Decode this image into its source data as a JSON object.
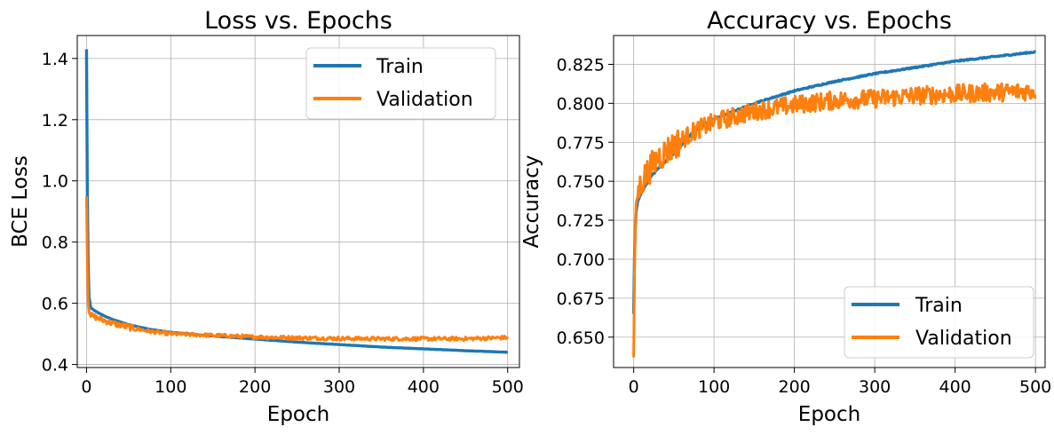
{
  "chart_data": [
    {
      "type": "line",
      "title": "Loss vs. Epochs",
      "xlabel": "Epoch",
      "ylabel": "BCE Loss",
      "xlim": [
        -11,
        514
      ],
      "ylim": [
        0.39,
        1.475
      ],
      "xticks": [
        0,
        100,
        200,
        300,
        400,
        500
      ],
      "xtick_labels": [
        "0",
        "100",
        "200",
        "300",
        "400",
        "500"
      ],
      "yticks": [
        0.4,
        0.6,
        0.8,
        1.0,
        1.2,
        1.4
      ],
      "ytick_labels": [
        "0.4",
        "0.6",
        "0.8",
        "1.0",
        "1.2",
        "1.4"
      ],
      "grid": true,
      "legend_position": "top-right",
      "series": [
        {
          "name": "Train",
          "color": "#1f77b4",
          "x": [
            0,
            1,
            2,
            3,
            5,
            10,
            20,
            30,
            50,
            75,
            100,
            150,
            200,
            250,
            300,
            350,
            400,
            450,
            500
          ],
          "values": [
            1.43,
            0.95,
            0.72,
            0.62,
            0.585,
            0.575,
            0.56,
            0.548,
            0.53,
            0.515,
            0.505,
            0.493,
            0.483,
            0.473,
            0.465,
            0.457,
            0.451,
            0.445,
            0.44
          ]
        },
        {
          "name": "Validation",
          "color": "#ff7f0e",
          "noise": 0.006,
          "x": [
            0,
            1,
            2,
            3,
            5,
            10,
            20,
            30,
            50,
            75,
            100,
            150,
            200,
            250,
            300,
            350,
            400,
            450,
            500
          ],
          "values": [
            0.95,
            0.73,
            0.6,
            0.57,
            0.56,
            0.555,
            0.545,
            0.535,
            0.522,
            0.508,
            0.5,
            0.495,
            0.49,
            0.487,
            0.485,
            0.484,
            0.484,
            0.484,
            0.488
          ]
        }
      ]
    },
    {
      "type": "line",
      "title": "Accuracy vs. Epochs",
      "xlabel": "Epoch",
      "ylabel": "Accuracy",
      "xlim": [
        -25,
        512
      ],
      "ylim": [
        0.6305,
        0.8435
      ],
      "xticks": [
        0,
        100,
        200,
        300,
        400,
        500
      ],
      "xtick_labels": [
        "0",
        "100",
        "200",
        "300",
        "400",
        "500"
      ],
      "yticks": [
        0.65,
        0.675,
        0.7,
        0.725,
        0.75,
        0.775,
        0.8,
        0.825
      ],
      "ytick_labels": [
        "0.650",
        "0.675",
        "0.700",
        "0.725",
        "0.750",
        "0.775",
        "0.800",
        "0.825"
      ],
      "grid": true,
      "legend_position": "bottom-right",
      "series": [
        {
          "name": "Train",
          "color": "#1f77b4",
          "x": [
            0,
            1,
            2,
            3,
            5,
            10,
            20,
            30,
            50,
            75,
            100,
            150,
            200,
            250,
            300,
            350,
            400,
            450,
            500
          ],
          "values": [
            0.665,
            0.7,
            0.72,
            0.73,
            0.737,
            0.743,
            0.752,
            0.758,
            0.768,
            0.782,
            0.79,
            0.8,
            0.808,
            0.814,
            0.819,
            0.823,
            0.827,
            0.83,
            0.833
          ]
        },
        {
          "name": "Validation",
          "color": "#ff7f0e",
          "noise": 0.006,
          "x": [
            0,
            1,
            2,
            3,
            5,
            10,
            20,
            30,
            50,
            75,
            100,
            150,
            200,
            250,
            300,
            350,
            400,
            450,
            500
          ],
          "values": [
            0.637,
            0.69,
            0.72,
            0.735,
            0.742,
            0.75,
            0.758,
            0.765,
            0.773,
            0.782,
            0.788,
            0.795,
            0.799,
            0.802,
            0.803,
            0.805,
            0.806,
            0.807,
            0.808
          ]
        }
      ]
    }
  ]
}
